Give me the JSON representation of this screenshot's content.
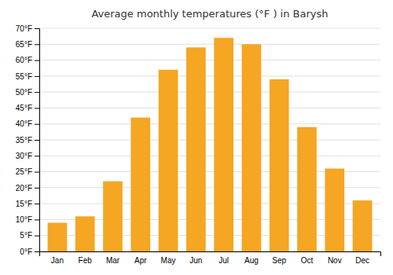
{
  "chart_data": {
    "type": "bar",
    "title": "Average monthly temperatures (°F ) in Barysh",
    "categories": [
      "Jan",
      "Feb",
      "Mar",
      "Apr",
      "May",
      "Jun",
      "Jul",
      "Aug",
      "Sep",
      "Oct",
      "Nov",
      "Dec"
    ],
    "values": [
      9,
      11,
      22,
      42,
      57,
      64,
      67,
      65,
      54,
      39,
      26,
      16
    ],
    "color": "#F5A623",
    "ylim": [
      0,
      70
    ],
    "yticks": [
      {
        "value": 0,
        "label": "0°F"
      },
      {
        "value": 5,
        "label": "5°F"
      },
      {
        "value": 10,
        "label": "10°F"
      },
      {
        "value": 15,
        "label": "15°F"
      },
      {
        "value": 20,
        "label": "20°F"
      },
      {
        "value": 25,
        "label": "25°F"
      },
      {
        "value": 30,
        "label": "30°F"
      },
      {
        "value": 35,
        "label": "35°F"
      },
      {
        "value": 40,
        "label": "40°F"
      },
      {
        "value": 45,
        "label": "45°F"
      },
      {
        "value": 50,
        "label": "50°F"
      },
      {
        "value": 55,
        "label": "55°F"
      },
      {
        "value": 60,
        "label": "60°F"
      },
      {
        "value": 65,
        "label": "65°F"
      },
      {
        "value": 70,
        "label": "70°F"
      }
    ],
    "grid": true
  }
}
